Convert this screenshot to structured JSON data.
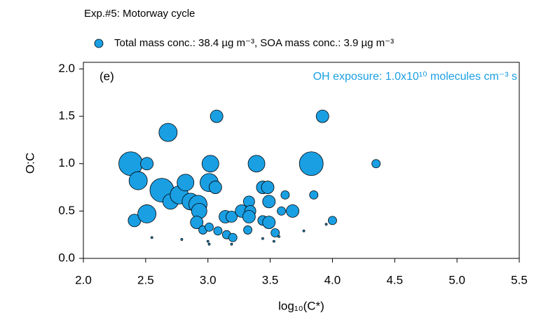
{
  "chart_data": {
    "type": "scatter",
    "title": "Exp.#5: Motorway cycle",
    "annotation": "OH exposure: 1.0x10¹⁰ molecules cm⁻³ s",
    "panel_label": "(e)",
    "xlabel": "log₁₀(C*)",
    "ylabel": "O:C",
    "xlim": [
      2.0,
      5.5
    ],
    "ylim": [
      0,
      2.07
    ],
    "xticks": [
      {
        "value": 2,
        "label": "2.0"
      },
      {
        "value": 2.5,
        "label": "2.5"
      },
      {
        "value": 3,
        "label": "3.0"
      },
      {
        "value": 3.5,
        "label": "3.5"
      },
      {
        "value": 4,
        "label": "4.0"
      },
      {
        "value": 4.5,
        "label": "4.5"
      },
      {
        "value": 5,
        "label": "5.0"
      },
      {
        "value": 5.5,
        "label": "5.5"
      }
    ],
    "yticks": [
      {
        "value": 0,
        "label": "0.0"
      },
      {
        "value": 0.5,
        "label": "0.5"
      },
      {
        "value": 1,
        "label": "1.0"
      },
      {
        "value": 1.5,
        "label": "1.5"
      },
      {
        "value": 2,
        "label": "2.0"
      }
    ],
    "series": [
      {
        "name": "Total mass conc.: 38.4 µg m⁻³, SOA mass conc.: 3.9 µg m⁻³",
        "color": "#1a9fe3",
        "x": [
          2.38,
          2.51,
          2.44,
          2.41,
          2.51,
          2.68,
          2.63,
          2.7,
          2.77,
          2.82,
          2.86,
          2.92,
          2.93,
          2.91,
          2.96,
          3.01,
          3.02,
          3.06,
          3.07,
          3.01,
          3.08,
          3.14,
          3.19,
          3.15,
          3.2,
          3.27,
          3.32,
          3.33,
          3.34,
          3.33,
          3.39,
          3.44,
          3.48,
          3.49,
          3.44,
          3.49,
          3.54,
          3.59,
          3.62,
          3.68,
          3.83,
          3.85,
          3.92,
          4.0,
          4.35,
          2.55,
          2.79,
          3.0,
          3.01,
          3.19,
          3.44,
          3.53,
          3.57,
          3.77,
          3.95
        ],
        "values": [
          1.0,
          1.0,
          0.82,
          0.4,
          0.47,
          1.33,
          0.72,
          0.6,
          0.67,
          0.8,
          0.6,
          0.57,
          0.5,
          0.38,
          0.3,
          0.8,
          1.0,
          0.75,
          1.5,
          0.33,
          0.29,
          0.44,
          0.44,
          0.25,
          0.22,
          0.5,
          0.3,
          0.6,
          0.5,
          0.44,
          1.0,
          0.75,
          0.75,
          0.6,
          0.4,
          0.38,
          0.27,
          0.5,
          0.67,
          0.5,
          1.0,
          0.67,
          1.5,
          0.4,
          1.0,
          0.22,
          0.2,
          0.18,
          0.15,
          0.15,
          0.21,
          0.18,
          0.23,
          0.29,
          0.36
        ],
        "sizes": [
          17,
          9,
          13,
          9,
          13,
          13,
          17,
          11,
          13,
          12,
          12,
          13,
          11,
          9,
          6,
          13,
          12,
          9,
          9,
          6,
          6,
          9,
          8,
          6,
          6,
          9,
          6,
          8,
          8,
          9,
          12,
          9,
          9,
          9,
          7,
          9,
          6,
          6,
          6,
          9,
          17,
          6,
          9,
          6,
          6,
          1.5,
          1.5,
          1.5,
          1.5,
          1.5,
          1.5,
          1.5,
          1.5,
          1.5,
          1.5
        ]
      }
    ]
  }
}
